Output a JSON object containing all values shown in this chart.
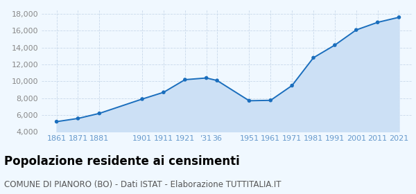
{
  "x_values": [
    1861,
    1871,
    1881,
    1901,
    1911,
    1921,
    1931,
    1936,
    1951,
    1961,
    1971,
    1981,
    1991,
    2001,
    2011,
    2021
  ],
  "y_values": [
    5220,
    5600,
    6200,
    7900,
    8700,
    10200,
    10400,
    10100,
    7700,
    7750,
    9500,
    12800,
    14300,
    16100,
    17000,
    17600
  ],
  "line_color": "#1a6ebd",
  "fill_color": "#cce0f5",
  "marker_color": "#1a6ebd",
  "background_color": "#f0f8ff",
  "grid_color": "#c8d8ea",
  "title": "Popolazione residente ai censimenti",
  "subtitle": "COMUNE DI PIANORO (BO) - Dati ISTAT - Elaborazione TUTTITALIA.IT",
  "ylim": [
    4000,
    18500
  ],
  "yticks": [
    4000,
    6000,
    8000,
    10000,
    12000,
    14000,
    16000,
    18000
  ],
  "ytick_labels": [
    "4,000",
    "6,000",
    "8,000",
    "10,000",
    "12,000",
    "14,000",
    "16,000",
    "18,000"
  ],
  "x_tick_positions": [
    1861,
    1871,
    1881,
    1901,
    1911,
    1921,
    1931,
    1936,
    1951,
    1961,
    1971,
    1981,
    1991,
    2001,
    2011,
    2021
  ],
  "x_tick_labels": [
    "1861",
    "1871",
    "1881",
    "1901",
    "1911",
    "1921",
    "'31",
    "36",
    "1951",
    "1961",
    "1971",
    "1981",
    "1991",
    "2001",
    "2011",
    "2021"
  ],
  "xlim": [
    1854,
    2027
  ],
  "tick_color": "#6699cc",
  "ytick_color": "#888888",
  "title_fontsize": 12,
  "subtitle_fontsize": 8.5,
  "axis_fontsize": 8
}
